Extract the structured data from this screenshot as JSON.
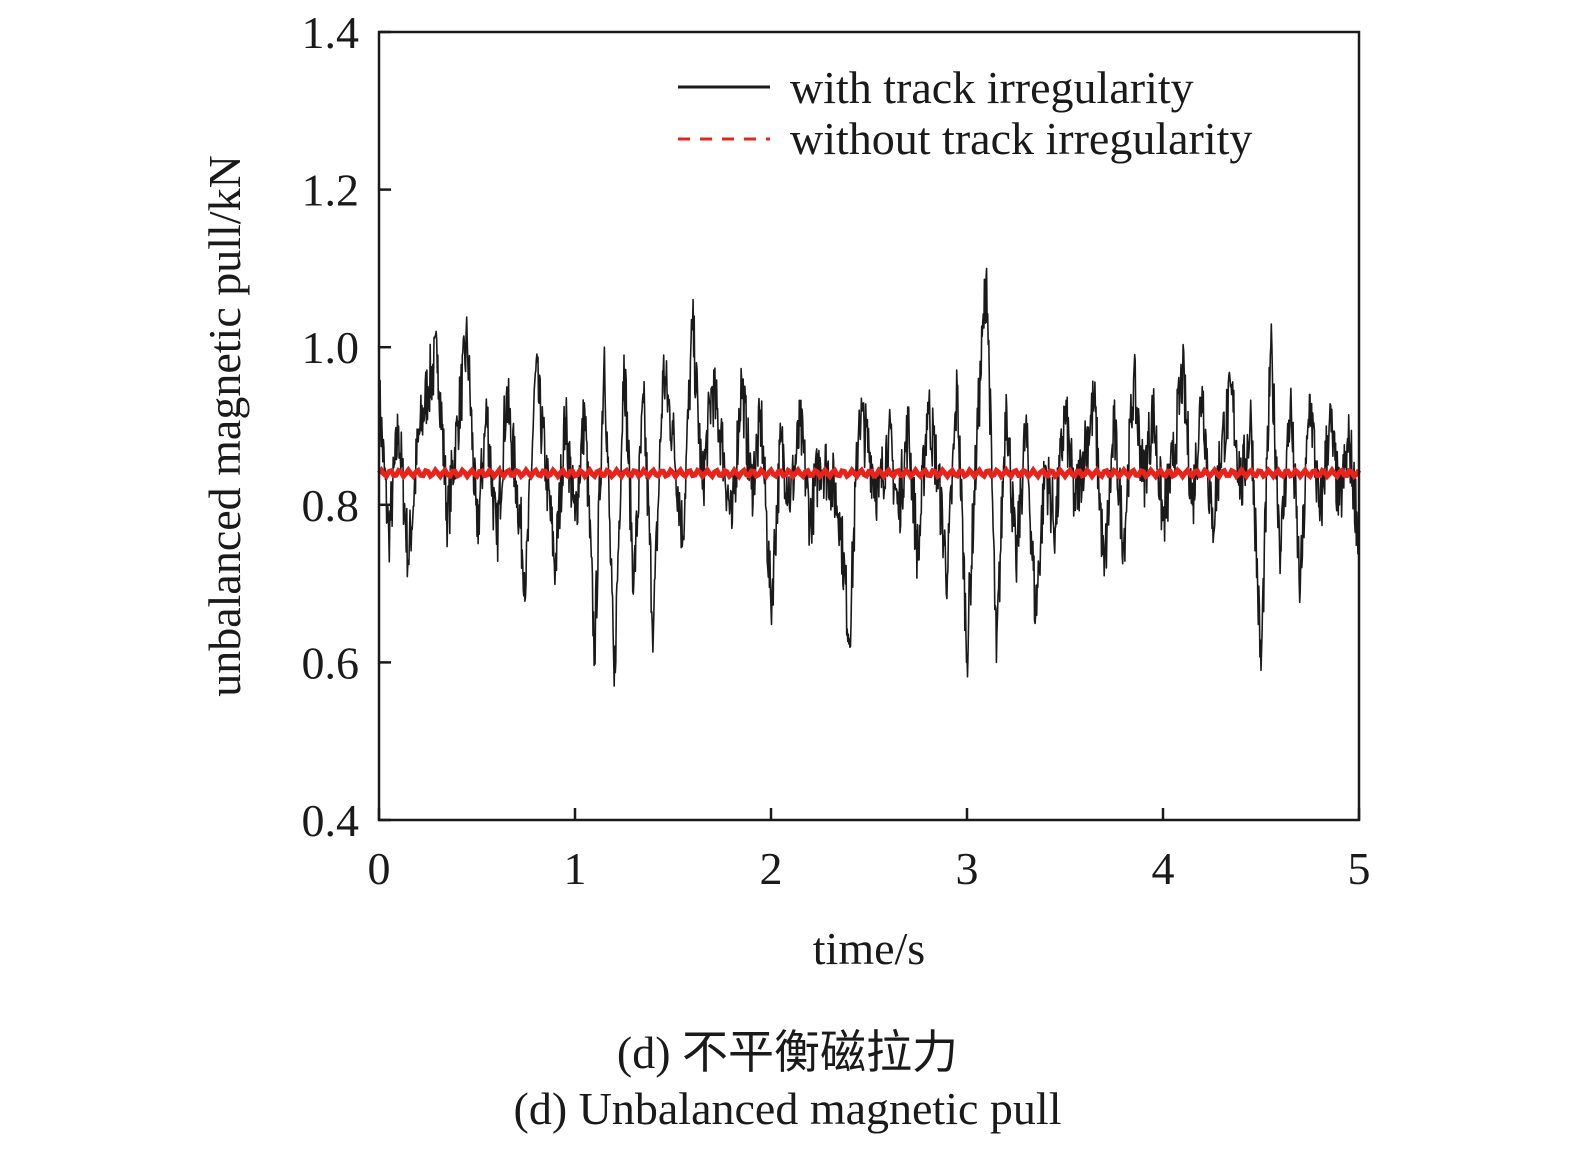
{
  "chart_data": {
    "type": "line",
    "title": "",
    "xlabel": "time/s",
    "ylabel": "unbalanced magnetic pull/kN",
    "xlim": [
      0,
      5
    ],
    "ylim": [
      0.4,
      1.4
    ],
    "x_ticks": [
      "0",
      "1",
      "2",
      "3",
      "4",
      "5"
    ],
    "y_ticks": [
      "0.4",
      "0.6",
      "0.8",
      "1.0",
      "1.2",
      "1.4"
    ],
    "grid": false,
    "legend_position": "top-right",
    "series": [
      {
        "name": "with track irregularity",
        "color": "#1a1a1a",
        "style": "solid",
        "x": [
          0.0,
          0.05,
          0.1,
          0.15,
          0.2,
          0.25,
          0.3,
          0.35,
          0.4,
          0.45,
          0.5,
          0.55,
          0.6,
          0.65,
          0.7,
          0.75,
          0.8,
          0.85,
          0.9,
          0.95,
          1.0,
          1.05,
          1.1,
          1.15,
          1.2,
          1.25,
          1.3,
          1.35,
          1.4,
          1.45,
          1.5,
          1.55,
          1.6,
          1.65,
          1.7,
          1.75,
          1.8,
          1.85,
          1.9,
          1.95,
          2.0,
          2.05,
          2.1,
          2.15,
          2.2,
          2.25,
          2.3,
          2.35,
          2.4,
          2.45,
          2.5,
          2.55,
          2.6,
          2.65,
          2.7,
          2.75,
          2.8,
          2.85,
          2.9,
          2.95,
          3.0,
          3.05,
          3.1,
          3.15,
          3.2,
          3.25,
          3.3,
          3.35,
          3.4,
          3.45,
          3.5,
          3.55,
          3.6,
          3.65,
          3.7,
          3.75,
          3.8,
          3.85,
          3.9,
          3.95,
          4.0,
          4.05,
          4.1,
          4.15,
          4.2,
          4.25,
          4.3,
          4.35,
          4.4,
          4.45,
          4.5,
          4.55,
          4.6,
          4.65,
          4.7,
          4.75,
          4.8,
          4.85,
          4.9,
          4.95,
          5.0
        ],
        "y": [
          0.94,
          0.76,
          0.9,
          0.73,
          0.88,
          0.95,
          0.99,
          0.78,
          0.9,
          1.01,
          0.76,
          0.92,
          0.75,
          0.94,
          0.83,
          0.7,
          0.97,
          0.85,
          0.72,
          0.91,
          0.78,
          0.92,
          0.61,
          1.0,
          0.57,
          0.99,
          0.7,
          0.93,
          0.64,
          0.97,
          0.89,
          0.76,
          1.03,
          0.82,
          0.95,
          0.88,
          0.77,
          0.96,
          0.82,
          0.91,
          0.67,
          0.88,
          0.81,
          0.9,
          0.78,
          0.86,
          0.84,
          0.79,
          0.63,
          0.92,
          0.87,
          0.81,
          0.89,
          0.79,
          0.9,
          0.73,
          0.93,
          0.84,
          0.71,
          0.95,
          0.61,
          0.88,
          1.1,
          0.6,
          0.94,
          0.72,
          0.9,
          0.66,
          0.85,
          0.77,
          0.92,
          0.8,
          0.87,
          0.93,
          0.71,
          0.9,
          0.75,
          0.96,
          0.83,
          0.92,
          0.78,
          0.85,
          0.97,
          0.8,
          0.95,
          0.77,
          0.88,
          0.94,
          0.82,
          0.91,
          0.59,
          1.0,
          0.74,
          0.93,
          0.69,
          0.94,
          0.78,
          0.91,
          0.8,
          0.88,
          0.76
        ],
        "y_range_shown": [
          0.57,
          1.1
        ]
      },
      {
        "name": "without track irregularity",
        "color": "#e8231b",
        "style": "dashed",
        "x": [
          0,
          5
        ],
        "y": [
          0.84,
          0.84
        ]
      }
    ]
  },
  "caption": {
    "cn": "(d) 不平衡磁拉力",
    "en": "(d) Unbalanced magnetic pull"
  }
}
